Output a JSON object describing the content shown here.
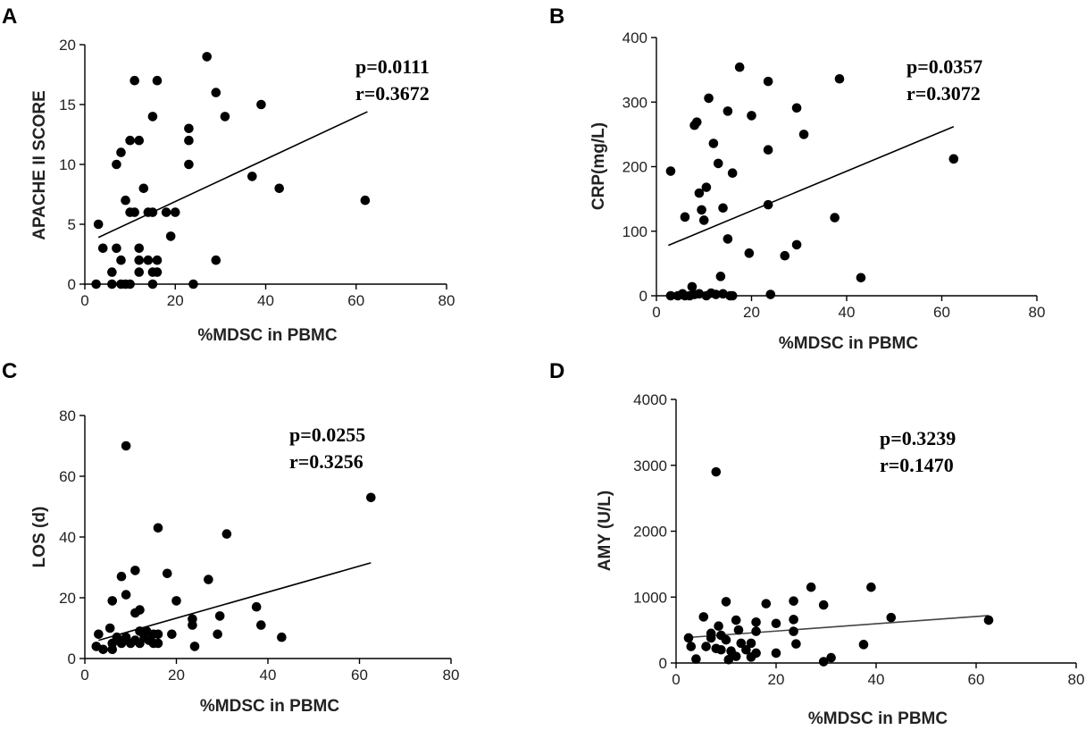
{
  "chart_data": [
    {
      "panel": "A",
      "type": "scatter",
      "xlabel": "%MDSC in PBMC",
      "ylabel": "APACHE II SCORE",
      "xlim": [
        0,
        80
      ],
      "ylim": [
        0,
        20
      ],
      "xticks": [
        0,
        20,
        40,
        60,
        80
      ],
      "yticks": [
        0,
        5,
        10,
        15,
        20
      ],
      "annotations": [
        "p=0.0111",
        "r=0.3672"
      ],
      "regression": {
        "x": [
          3,
          62.5
        ],
        "y": [
          3.9,
          14.4
        ]
      },
      "points": [
        [
          27,
          19
        ],
        [
          29,
          16
        ],
        [
          11,
          17
        ],
        [
          16,
          17
        ],
        [
          31,
          14
        ],
        [
          39,
          15
        ],
        [
          15,
          14
        ],
        [
          23,
          13
        ],
        [
          10,
          12
        ],
        [
          12,
          12
        ],
        [
          23,
          12
        ],
        [
          8,
          11
        ],
        [
          7,
          10
        ],
        [
          23,
          10
        ],
        [
          37,
          9
        ],
        [
          43,
          8
        ],
        [
          13,
          8
        ],
        [
          9,
          7
        ],
        [
          62,
          7
        ],
        [
          10,
          6
        ],
        [
          11,
          6
        ],
        [
          14,
          6
        ],
        [
          15,
          6
        ],
        [
          18,
          6
        ],
        [
          20,
          6
        ],
        [
          3,
          5
        ],
        [
          19,
          4
        ],
        [
          4,
          3
        ],
        [
          7,
          3
        ],
        [
          12,
          3
        ],
        [
          8,
          2
        ],
        [
          12,
          2
        ],
        [
          14,
          2
        ],
        [
          16,
          2
        ],
        [
          29,
          2
        ],
        [
          6,
          1
        ],
        [
          12,
          1
        ],
        [
          15,
          1
        ],
        [
          16,
          1
        ],
        [
          2.5,
          0
        ],
        [
          6,
          0
        ],
        [
          8,
          0
        ],
        [
          9,
          0
        ],
        [
          10,
          0
        ],
        [
          15,
          0
        ],
        [
          24,
          0
        ]
      ]
    },
    {
      "panel": "B",
      "type": "scatter",
      "xlabel": "%MDSC in PBMC",
      "ylabel": "CRP(mg/L)",
      "xlim": [
        0,
        80
      ],
      "ylim": [
        0,
        400
      ],
      "xticks": [
        0,
        20,
        40,
        60,
        80
      ],
      "yticks": [
        0,
        100,
        200,
        300,
        400
      ],
      "annotations": [
        "p=0.0357",
        "r=0.3072"
      ],
      "regression": {
        "x": [
          2.5,
          62.5
        ],
        "y": [
          78,
          262
        ]
      },
      "points": [
        [
          17.5,
          354
        ],
        [
          38.5,
          336
        ],
        [
          23.5,
          332
        ],
        [
          11,
          306
        ],
        [
          29.5,
          291
        ],
        [
          15,
          286
        ],
        [
          20,
          279
        ],
        [
          8.5,
          269
        ],
        [
          8,
          264
        ],
        [
          31,
          250
        ],
        [
          12,
          236
        ],
        [
          23.5,
          226
        ],
        [
          62.5,
          212
        ],
        [
          13,
          205
        ],
        [
          3,
          193
        ],
        [
          16,
          190
        ],
        [
          10.5,
          168
        ],
        [
          9,
          159
        ],
        [
          23.5,
          141
        ],
        [
          14,
          136
        ],
        [
          9.5,
          133
        ],
        [
          6,
          122
        ],
        [
          37.5,
          121
        ],
        [
          10,
          117
        ],
        [
          15,
          88
        ],
        [
          29.5,
          79
        ],
        [
          19.5,
          66
        ],
        [
          27,
          62
        ],
        [
          43,
          28
        ],
        [
          13.5,
          30
        ],
        [
          7.5,
          14
        ],
        [
          3,
          0
        ],
        [
          4.5,
          0
        ],
        [
          6,
          0
        ],
        [
          7,
          0
        ],
        [
          8,
          2
        ],
        [
          9,
          3
        ],
        [
          10.5,
          0
        ],
        [
          11.5,
          4
        ],
        [
          12.5,
          2
        ],
        [
          14,
          3
        ],
        [
          15.5,
          0
        ],
        [
          16,
          0
        ],
        [
          24,
          2
        ],
        [
          5.5,
          3
        ]
      ]
    },
    {
      "panel": "C",
      "type": "scatter",
      "xlabel": "%MDSC in PBMC",
      "ylabel": "LOS (d)",
      "xlim": [
        0,
        80
      ],
      "ylim": [
        0,
        80
      ],
      "xticks": [
        0,
        20,
        40,
        60,
        80
      ],
      "yticks": [
        0,
        20,
        40,
        60,
        80
      ],
      "annotations": [
        "p=0.0255",
        "r=0.3256"
      ],
      "regression": {
        "x": [
          3,
          62.5
        ],
        "y": [
          6,
          31.5
        ]
      },
      "points": [
        [
          9,
          70
        ],
        [
          62.5,
          53
        ],
        [
          16,
          43
        ],
        [
          31,
          41
        ],
        [
          18,
          28
        ],
        [
          27,
          26
        ],
        [
          11,
          29
        ],
        [
          8,
          27
        ],
        [
          9,
          21
        ],
        [
          6,
          19
        ],
        [
          20,
          19
        ],
        [
          12,
          16
        ],
        [
          11,
          15
        ],
        [
          37.5,
          17
        ],
        [
          29.5,
          14
        ],
        [
          23.5,
          13
        ],
        [
          23.5,
          11
        ],
        [
          38.5,
          11
        ],
        [
          5.5,
          10
        ],
        [
          13.5,
          9
        ],
        [
          12,
          9
        ],
        [
          15,
          8
        ],
        [
          16,
          8
        ],
        [
          19,
          8
        ],
        [
          29,
          8
        ],
        [
          43,
          7
        ],
        [
          3,
          8
        ],
        [
          7,
          7
        ],
        [
          9,
          7
        ],
        [
          11,
          6
        ],
        [
          13,
          7
        ],
        [
          14,
          6
        ],
        [
          6,
          5
        ],
        [
          8,
          5
        ],
        [
          10,
          5
        ],
        [
          15,
          5
        ],
        [
          2.5,
          4
        ],
        [
          4,
          3
        ],
        [
          6,
          3
        ],
        [
          12,
          5
        ],
        [
          16,
          5
        ],
        [
          24,
          4
        ]
      ]
    },
    {
      "panel": "D",
      "type": "scatter",
      "xlabel": "%MDSC in PBMC",
      "ylabel": "AMY (U/L)",
      "xlim": [
        0,
        80
      ],
      "ylim": [
        0,
        4000
      ],
      "xticks": [
        0,
        20,
        40,
        60,
        80
      ],
      "yticks": [
        0,
        1000,
        2000,
        3000,
        4000
      ],
      "annotations": [
        "p=0.3239",
        "r=0.1470"
      ],
      "regression": {
        "x": [
          3,
          62.5
        ],
        "y": [
          390,
          720
        ]
      },
      "points": [
        [
          8,
          2900
        ],
        [
          27,
          1150
        ],
        [
          39,
          1150
        ],
        [
          10,
          930
        ],
        [
          18,
          900
        ],
        [
          23.5,
          940
        ],
        [
          29.5,
          880
        ],
        [
          43,
          690
        ],
        [
          62.5,
          650
        ],
        [
          5.5,
          700
        ],
        [
          12,
          650
        ],
        [
          16,
          620
        ],
        [
          20,
          600
        ],
        [
          23.5,
          660
        ],
        [
          8.5,
          560
        ],
        [
          12.5,
          500
        ],
        [
          16,
          480
        ],
        [
          23.5,
          480
        ],
        [
          7,
          450
        ],
        [
          9,
          420
        ],
        [
          2.5,
          380
        ],
        [
          7,
          380
        ],
        [
          10,
          350
        ],
        [
          13,
          300
        ],
        [
          15,
          300
        ],
        [
          24,
          290
        ],
        [
          37.5,
          280
        ],
        [
          3,
          250
        ],
        [
          6,
          250
        ],
        [
          8,
          220
        ],
        [
          9,
          200
        ],
        [
          11,
          180
        ],
        [
          14,
          200
        ],
        [
          16,
          150
        ],
        [
          20,
          150
        ],
        [
          12,
          100
        ],
        [
          15,
          90
        ],
        [
          31,
          80
        ],
        [
          4,
          60
        ],
        [
          10.5,
          50
        ],
        [
          29.5,
          20
        ]
      ]
    }
  ]
}
